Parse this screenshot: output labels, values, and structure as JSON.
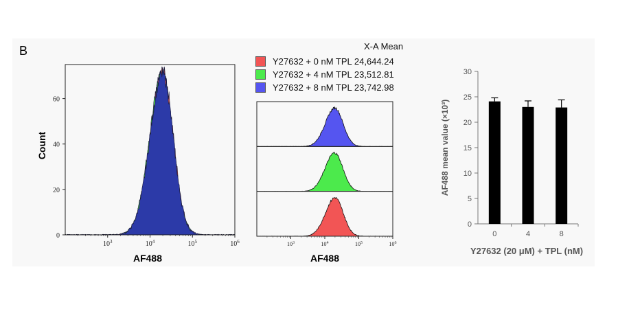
{
  "panel_label": "B",
  "legend": {
    "title": "X-A Mean",
    "entries": [
      {
        "label": "Y27632 + 0 nM TPL 24,644.24",
        "color": "#f25555"
      },
      {
        "label": "Y27632 + 4 nM TPL 23,512.81",
        "color": "#4cea4c"
      },
      {
        "label": "Y27632 + 8 nM TPL 23,742.98",
        "color": "#5555f0"
      }
    ]
  },
  "chart_data": [
    {
      "type": "area",
      "title": "",
      "xlabel": "AF488",
      "ylabel": "Count",
      "x_scale": "log",
      "xlim": [
        100,
        1000000
      ],
      "ylim": [
        0,
        75
      ],
      "x_ticks": [
        {
          "value": 1000,
          "label": "10",
          "exp": "3"
        },
        {
          "value": 10000,
          "label": "10",
          "exp": "4"
        },
        {
          "value": 100000,
          "label": "10",
          "exp": "5"
        },
        {
          "value": 1000000,
          "label": "10",
          "exp": "6"
        }
      ],
      "y_ticks": [
        0,
        20,
        40,
        60
      ],
      "series": [
        {
          "color": "#f25555",
          "peak_x": 20000,
          "peak_count": 72
        },
        {
          "color": "#4cea4c",
          "peak_x": 19500,
          "peak_count": 71
        },
        {
          "color": "#2c3aa8",
          "peak_x": 19800,
          "peak_count": 71
        }
      ]
    },
    {
      "type": "area",
      "title": "",
      "xlabel": "AF488",
      "x_scale": "log",
      "xlim": [
        100,
        1000000
      ],
      "x_ticks": [
        {
          "value": 1000,
          "label": "10",
          "exp": "3"
        },
        {
          "value": 10000,
          "label": "10",
          "exp": "4"
        },
        {
          "value": 100000,
          "label": "10",
          "exp": "5"
        },
        {
          "value": 1000000,
          "label": "10",
          "exp": "6"
        }
      ],
      "series": [
        {
          "condition": "Y27632 + 8 nM TPL",
          "color": "#5555f0",
          "peak_x": 19800
        },
        {
          "condition": "Y27632 + 4 nM TPL",
          "color": "#4cea4c",
          "peak_x": 19500
        },
        {
          "condition": "Y27632 + 0 nM TPL",
          "color": "#f25555",
          "peak_x": 20000
        }
      ]
    },
    {
      "type": "bar",
      "title": "",
      "categories": [
        "0",
        "4",
        "8"
      ],
      "values": [
        24.1,
        23.0,
        22.9
      ],
      "errors": [
        0.7,
        1.2,
        1.5
      ],
      "xlabel": "Y27632 (20 μM) + TPL (nM)",
      "ylabel": "AF488  mean value (×10³)",
      "ylim": [
        0,
        30
      ],
      "y_ticks": [
        0,
        5,
        10,
        15,
        20,
        25,
        30
      ],
      "bar_color": "#000000"
    }
  ]
}
